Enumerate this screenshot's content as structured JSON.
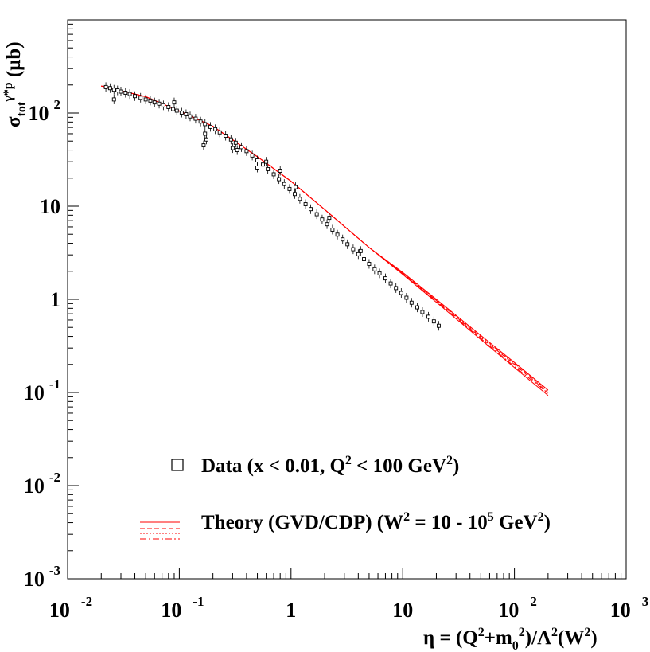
{
  "chart_data": {
    "type": "scatter",
    "x_scale": "log",
    "y_scale": "log",
    "xlim": [
      0.01,
      1000
    ],
    "ylim": [
      0.001,
      1000
    ],
    "xlabel": {
      "parts": [
        "η = (Q",
        "2",
        "+m",
        "0",
        "2",
        ")/Λ",
        "2",
        "(W",
        "2",
        ")"
      ]
    },
    "ylabel": {
      "parts": [
        "σ",
        "tot",
        "γ*p",
        " (μb)"
      ]
    },
    "x_ticks": [
      {
        "value": 0.01,
        "base": "10",
        "exp": "-2"
      },
      {
        "value": 0.1,
        "base": "10",
        "exp": "-1"
      },
      {
        "value": 1,
        "base": "1",
        "exp": ""
      },
      {
        "value": 10,
        "base": "10",
        "exp": ""
      },
      {
        "value": 100,
        "base": "10",
        "exp": "2"
      },
      {
        "value": 1000,
        "base": "10",
        "exp": "3"
      }
    ],
    "y_ticks": [
      {
        "value": 0.001,
        "base": "10",
        "exp": "-3"
      },
      {
        "value": 0.01,
        "base": "10",
        "exp": "-2"
      },
      {
        "value": 0.1,
        "base": "10",
        "exp": "-1"
      },
      {
        "value": 1,
        "base": "1",
        "exp": ""
      },
      {
        "value": 10,
        "base": "10",
        "exp": ""
      },
      {
        "value": 100,
        "base": "10",
        "exp": "2"
      }
    ],
    "data_series": {
      "legend_parts": [
        "Data (x < 0.01, Q",
        "2",
        " < 100 GeV",
        "2",
        ")"
      ],
      "color": "#000000",
      "marker": "open-square",
      "points": [
        [
          0.022,
          190
        ],
        [
          0.024,
          185
        ],
        [
          0.026,
          178
        ],
        [
          0.028,
          175
        ],
        [
          0.03,
          170
        ],
        [
          0.033,
          165
        ],
        [
          0.036,
          160
        ],
        [
          0.04,
          152
        ],
        [
          0.045,
          146
        ],
        [
          0.05,
          140
        ],
        [
          0.055,
          136
        ],
        [
          0.06,
          130
        ],
        [
          0.066,
          126
        ],
        [
          0.072,
          121
        ],
        [
          0.08,
          116
        ],
        [
          0.088,
          110
        ],
        [
          0.095,
          106
        ],
        [
          0.105,
          101
        ],
        [
          0.115,
          97
        ],
        [
          0.125,
          92
        ],
        [
          0.14,
          87
        ],
        [
          0.155,
          81
        ],
        [
          0.17,
          76
        ],
        [
          0.19,
          71
        ],
        [
          0.21,
          67
        ],
        [
          0.23,
          62
        ],
        [
          0.26,
          57
        ],
        [
          0.29,
          52
        ],
        [
          0.32,
          48
        ],
        [
          0.36,
          43
        ],
        [
          0.4,
          39
        ],
        [
          0.45,
          35
        ],
        [
          0.5,
          31
        ],
        [
          0.56,
          28
        ],
        [
          0.62,
          25
        ],
        [
          0.7,
          22
        ],
        [
          0.78,
          19.5
        ],
        [
          0.87,
          17.3
        ],
        [
          0.97,
          15.3
        ],
        [
          1.08,
          13.5
        ],
        [
          1.2,
          12
        ],
        [
          1.35,
          10.5
        ],
        [
          1.5,
          9.3
        ],
        [
          1.7,
          8.2
        ],
        [
          1.9,
          7.2
        ],
        [
          2.1,
          6.4
        ],
        [
          2.35,
          5.6
        ],
        [
          2.6,
          4.95
        ],
        [
          2.9,
          4.4
        ],
        [
          3.2,
          3.9
        ],
        [
          3.6,
          3.45
        ],
        [
          4.0,
          3.05
        ],
        [
          4.5,
          2.7
        ],
        [
          5.0,
          2.4
        ],
        [
          5.6,
          2.1
        ],
        [
          6.2,
          1.9
        ],
        [
          7.0,
          1.68
        ],
        [
          7.8,
          1.48
        ],
        [
          8.7,
          1.32
        ],
        [
          9.7,
          1.17
        ],
        [
          10.8,
          1.04
        ],
        [
          12.0,
          0.92
        ],
        [
          13.5,
          0.82
        ],
        [
          15.0,
          0.73
        ],
        [
          17.0,
          0.65
        ],
        [
          19.0,
          0.58
        ],
        [
          21.0,
          0.52
        ],
        [
          0.165,
          45
        ],
        [
          0.17,
          60
        ],
        [
          0.175,
          52
        ],
        [
          0.026,
          140
        ],
        [
          0.33,
          40
        ],
        [
          0.6,
          30
        ],
        [
          1.1,
          16
        ],
        [
          2.2,
          7.5
        ],
        [
          4.2,
          3.3
        ],
        [
          0.09,
          130
        ],
        [
          0.3,
          42
        ],
        [
          0.5,
          26
        ],
        [
          0.8,
          24
        ]
      ]
    },
    "theory_series": {
      "legend_parts": [
        "Theory (GVD/CDP) (W",
        "2",
        " = 10 - 10",
        "5",
        " GeV",
        "2",
        ")"
      ],
      "color": "#ff0000",
      "curves": [
        {
          "style": "solid",
          "x": [
            0.02,
            0.05,
            0.1,
            0.2,
            0.5,
            1,
            2,
            5,
            10,
            20,
            50,
            100,
            200
          ],
          "y": [
            195,
            150,
            105,
            72,
            34,
            18.5,
            9.2,
            3.6,
            1.85,
            0.93,
            0.37,
            0.185,
            0.093
          ]
        },
        {
          "style": "solid",
          "x": [
            0.02,
            0.05,
            0.1,
            0.2,
            0.5,
            1,
            2,
            5,
            10,
            20,
            50,
            100,
            200
          ],
          "y": [
            195,
            150,
            105,
            72,
            34,
            18.5,
            9.2,
            3.6,
            1.95,
            1.0,
            0.41,
            0.21,
            0.106
          ]
        },
        {
          "style": "dashed",
          "x": [
            0.02,
            0.05,
            0.1,
            0.2,
            0.5,
            1,
            2,
            5,
            10,
            20,
            50,
            100,
            200
          ],
          "y": [
            195,
            150,
            105,
            72,
            34,
            18.5,
            9.2,
            3.6,
            1.9,
            0.97,
            0.39,
            0.2,
            0.1
          ]
        },
        {
          "style": "dotted",
          "x": [
            0.02,
            0.05,
            0.1,
            0.2,
            0.5,
            1,
            2,
            5,
            10,
            20,
            50,
            100,
            200
          ],
          "y": [
            195,
            150,
            105,
            72,
            34,
            18.5,
            9.2,
            3.6,
            1.92,
            0.99,
            0.4,
            0.205,
            0.104
          ]
        },
        {
          "style": "dashdot",
          "x": [
            0.02,
            0.05,
            0.1,
            0.2,
            0.5,
            1,
            2,
            5,
            10,
            20,
            50,
            100,
            200
          ],
          "y": [
            195,
            150,
            105,
            72,
            34,
            18.5,
            9.2,
            3.6,
            1.88,
            0.95,
            0.38,
            0.19,
            0.098
          ]
        }
      ]
    },
    "legend_position": "bottom"
  }
}
